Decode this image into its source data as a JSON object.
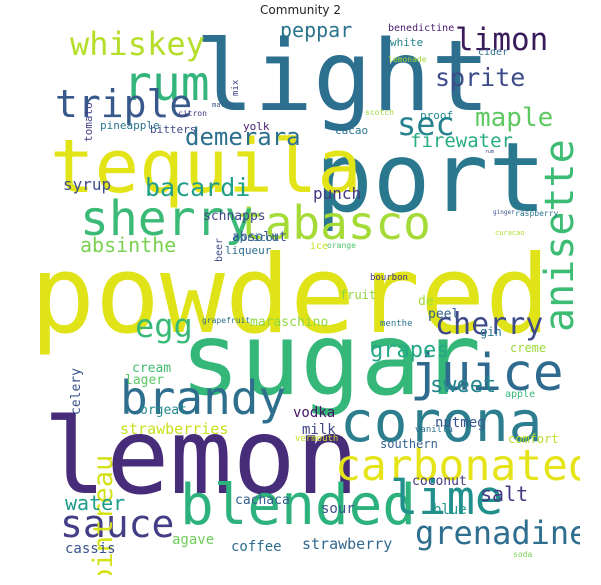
{
  "title": "Community 2",
  "words": [
    {
      "text": "powdered",
      "color": "#dfe318"
    },
    {
      "text": "light",
      "color": "#2d6f8e"
    },
    {
      "text": "sugar",
      "color": "#35b779"
    },
    {
      "text": "lemon",
      "color": "#472c7a"
    },
    {
      "text": "port",
      "color": "#2a788e"
    },
    {
      "text": "tequila",
      "color": "#e2e418"
    },
    {
      "text": "corona",
      "color": "#2c7e8e"
    },
    {
      "text": "blended",
      "color": "#2db27d"
    },
    {
      "text": "carbonated",
      "color": "#e5e419"
    },
    {
      "text": "tabasco",
      "color": "#a5db36"
    },
    {
      "text": "sherry",
      "color": "#3aba76"
    },
    {
      "text": "juice",
      "color": "#2f6b8e"
    },
    {
      "text": "brandy",
      "color": "#2e6f8e"
    },
    {
      "text": "rum",
      "color": "#32b47b"
    },
    {
      "text": "lime",
      "color": "#21908d"
    },
    {
      "text": "sauce",
      "color": "#433e85"
    },
    {
      "text": "anisette",
      "color": "#3dbc74"
    },
    {
      "text": "triple",
      "color": "#38598c"
    },
    {
      "text": "grenadine",
      "color": "#2e6e8e"
    },
    {
      "text": "whiskey",
      "color": "#b5de2b"
    },
    {
      "text": "egg",
      "color": "#38b977"
    },
    {
      "text": "cherry",
      "color": "#3e4989"
    },
    {
      "text": "limon",
      "color": "#3b1c5a"
    },
    {
      "text": "sec",
      "color": "#26828e"
    },
    {
      "text": "cointreau",
      "color": "#d5e21a"
    },
    {
      "text": "sprite",
      "color": "#3e4c8a"
    },
    {
      "text": "maple",
      "color": "#5ec962"
    },
    {
      "text": "bacardi",
      "color": "#1f9e89"
    },
    {
      "text": "demerara",
      "color": "#2d708e"
    },
    {
      "text": "grapes",
      "color": "#22a884"
    },
    {
      "text": "sweet",
      "color": "#24878e"
    },
    {
      "text": "absinthe",
      "color": "#7ad151"
    },
    {
      "text": "water",
      "color": "#1e9b8a"
    },
    {
      "text": "salt",
      "color": "#443983"
    },
    {
      "text": "peppar",
      "color": "#2b748e"
    },
    {
      "text": "firewater",
      "color": "#27ad81"
    },
    {
      "text": "punch",
      "color": "#453882"
    },
    {
      "text": "syrup",
      "color": "#3d4e8a"
    },
    {
      "text": "schnapps",
      "color": "#404688"
    },
    {
      "text": "absolut",
      "color": "#3b528b"
    },
    {
      "text": "strawberry",
      "color": "#31688e"
    },
    {
      "text": "coffee",
      "color": "#2e6d8e"
    },
    {
      "text": "agave",
      "color": "#6ece58"
    },
    {
      "text": "cassis",
      "color": "#3a548c"
    },
    {
      "text": "vodka",
      "color": "#471365"
    },
    {
      "text": "milk",
      "color": "#3f4788"
    },
    {
      "text": "strawberries",
      "color": "#c8e020"
    },
    {
      "text": "coconut",
      "color": "#443a83"
    },
    {
      "text": "cachaca",
      "color": "#34608d"
    },
    {
      "text": "sour",
      "color": "#3b518b"
    },
    {
      "text": "blue",
      "color": "#1f978b"
    },
    {
      "text": "nutmeg",
      "color": "#38578c"
    },
    {
      "text": "southern",
      "color": "#33628d"
    },
    {
      "text": "comfort",
      "color": "#b8de29"
    },
    {
      "text": "orgeat",
      "color": "#23898e"
    },
    {
      "text": "cream",
      "color": "#40bd72"
    },
    {
      "text": "lager",
      "color": "#5cc863"
    },
    {
      "text": "celery",
      "color": "#3a548c"
    },
    {
      "text": "maraschino",
      "color": "#90d743"
    },
    {
      "text": "peel",
      "color": "#34618d"
    },
    {
      "text": "de",
      "color": "#a0da39"
    },
    {
      "text": "gin",
      "color": "#2a768e"
    },
    {
      "text": "creme",
      "color": "#9dd93b"
    },
    {
      "text": "fruit",
      "color": "#8ed645"
    },
    {
      "text": "apple",
      "color": "#35b779"
    },
    {
      "text": "vanilla",
      "color": "#2e6f8e"
    },
    {
      "text": "vermouth",
      "color": "#c5e021"
    },
    {
      "text": "bourbon",
      "color": "#46327e"
    },
    {
      "text": "menthe",
      "color": "#2a768e"
    },
    {
      "text": "grapefruit",
      "color": "#2c718e"
    },
    {
      "text": "ice",
      "color": "#c2df23"
    },
    {
      "text": "orange",
      "color": "#4ac16d"
    },
    {
      "text": "apricot",
      "color": "#2d708e"
    },
    {
      "text": "liqueur",
      "color": "#2e6d8e"
    },
    {
      "text": "beer",
      "color": "#3e4a89"
    },
    {
      "text": "cacao",
      "color": "#2c738e"
    },
    {
      "text": "yolk",
      "color": "#482173"
    },
    {
      "text": "bitters",
      "color": "#3f4889"
    },
    {
      "text": "pineapple",
      "color": "#2a778e"
    },
    {
      "text": "citron",
      "color": "#46307e"
    },
    {
      "text": "tomato",
      "color": "#424086"
    },
    {
      "text": "mix",
      "color": "#424186"
    },
    {
      "text": "maltu",
      "color": "#39568c"
    },
    {
      "text": "white",
      "color": "#25848e"
    },
    {
      "text": "proof",
      "color": "#24878e"
    },
    {
      "text": "cider",
      "color": "#2f6c8e"
    },
    {
      "text": "benedictine",
      "color": "#481c6e"
    },
    {
      "text": "lemonade",
      "color": "#9fda3a"
    },
    {
      "text": "scotch",
      "color": "#9bd93c"
    },
    {
      "text": "curacao",
      "color": "#b0dd2f"
    },
    {
      "text": "ginger",
      "color": "#3b518b"
    },
    {
      "text": "raspberry",
      "color": "#2b758e"
    },
    {
      "text": "rum",
      "color": "#3e4c8a"
    },
    {
      "text": "soda",
      "color": "#79d151"
    }
  ]
}
